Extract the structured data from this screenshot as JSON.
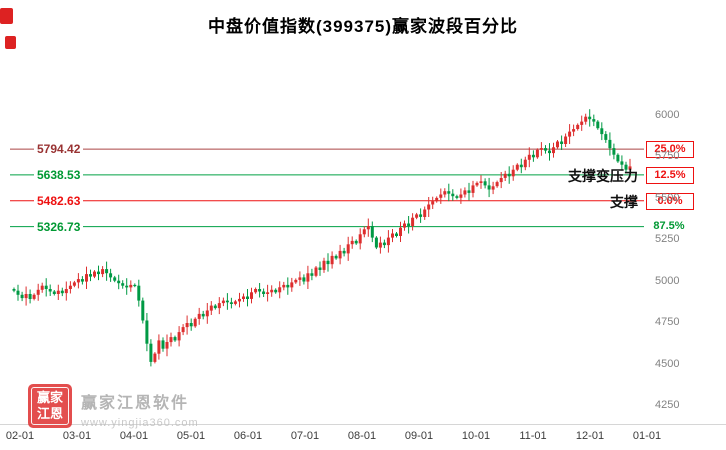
{
  "title": "中盘价值指数(399375)赢家波段百分比",
  "watermark": {
    "logo_line1": "赢家",
    "logo_line2": "江恩",
    "name": "赢家江恩软件",
    "url": "www.yingjia360.com"
  },
  "chart_data": {
    "type": "candlestick",
    "title": "中盘价值指数(399375)赢家波段百分比",
    "x_ticks": [
      "02-01",
      "03-01",
      "04-01",
      "05-01",
      "06-01",
      "07-01",
      "08-01",
      "09-01",
      "10-01",
      "11-01",
      "12-01",
      "01-01"
    ],
    "y_ticks": [
      6000,
      5750,
      5500,
      5250,
      5000,
      4750,
      4500,
      4250
    ],
    "y_range": [
      4250,
      6000
    ],
    "grid": "none",
    "legend": "none",
    "up_color": "#dd2e2e",
    "down_color": "#009944",
    "first_open": 4950,
    "closes": [
      4940,
      4915,
      4895,
      4920,
      4890,
      4915,
      4945,
      4970,
      4950,
      4935,
      4920,
      4940,
      4925,
      4950,
      4970,
      4990,
      5010,
      4995,
      5040,
      5025,
      5055,
      5040,
      5070,
      5045,
      5020,
      5000,
      4985,
      4970,
      4960,
      4975,
      4970,
      4880,
      4760,
      4620,
      4510,
      4560,
      4640,
      4590,
      4630,
      4660,
      4640,
      4690,
      4720,
      4745,
      4725,
      4770,
      4800,
      4785,
      4820,
      4850,
      4835,
      4865,
      4880,
      4870,
      4860,
      4875,
      4890,
      4905,
      4890,
      4930,
      4950,
      4935,
      4920,
      4930,
      4945,
      4930,
      4960,
      4975,
      4960,
      4990,
      5005,
      5020,
      4995,
      5045,
      5030,
      5080,
      5065,
      5120,
      5100,
      5150,
      5135,
      5180,
      5165,
      5220,
      5240,
      5225,
      5280,
      5310,
      5330,
      5260,
      5200,
      5230,
      5215,
      5260,
      5285,
      5270,
      5320,
      5345,
      5330,
      5380,
      5400,
      5385,
      5430,
      5460,
      5480,
      5500,
      5520,
      5540,
      5525,
      5510,
      5500,
      5520,
      5545,
      5530,
      5575,
      5590,
      5600,
      5575,
      5550,
      5570,
      5595,
      5620,
      5645,
      5630,
      5670,
      5700,
      5685,
      5730,
      5760,
      5745,
      5790,
      5800,
      5785,
      5770,
      5805,
      5840,
      5825,
      5870,
      5900,
      5915,
      5940,
      5960,
      5990,
      5975,
      5960,
      5920,
      5885,
      5850,
      5800,
      5760,
      5720,
      5700,
      5670,
      5690
    ],
    "levels": [
      {
        "price": 5794.42,
        "label": "5794.42",
        "percent": "25.0%",
        "line_color": "#aa4444",
        "label_color": "#993333",
        "percent_color": "#ee1111",
        "boxed": true
      },
      {
        "price": 5638.53,
        "label": "5638.53",
        "percent": "12.5%",
        "line_color": "#00a044",
        "label_color": "#009933",
        "percent_color": "#ee1111",
        "boxed": true
      },
      {
        "price": 5482.63,
        "label": "5482.63",
        "percent": "0.0%",
        "line_color": "#ee1111",
        "label_color": "#ee1111",
        "percent_color": "#ee1111",
        "boxed": true
      },
      {
        "price": 5326.73,
        "label": "5326.73",
        "percent": "87.5%",
        "line_color": "#00a044",
        "label_color": "#009933",
        "percent_color": "#009933",
        "boxed": false
      }
    ],
    "annotations": [
      {
        "text": "支撑变压力",
        "anchor_price": 5638.53
      },
      {
        "text": "支撑",
        "anchor_price": 5482.63
      }
    ]
  }
}
